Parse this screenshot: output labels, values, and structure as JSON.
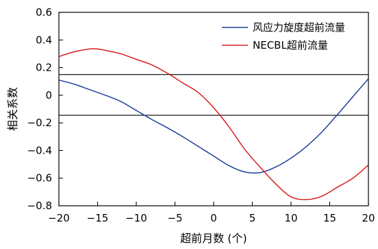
{
  "chart_data": {
    "type": "line",
    "title": "",
    "xlabel": "超前月数 (个)",
    "ylabel": "相关系数",
    "xlim": [
      -20,
      20
    ],
    "ylim": [
      -0.8,
      0.6
    ],
    "xticks": [
      -20,
      -15,
      -10,
      -5,
      0,
      5,
      10,
      15,
      20
    ],
    "xtick_labels": [
      "−20",
      "−15",
      "−10",
      "−5",
      "0",
      "5",
      "10",
      "15",
      "20"
    ],
    "yticks": [
      0.6,
      0.4,
      0.2,
      0,
      -0.2,
      -0.4,
      -0.6,
      -0.8
    ],
    "ytick_labels": [
      "0.6",
      "0.4",
      "0.2",
      "0",
      "−0.2",
      "−0.4",
      "−0.6",
      "−0.8"
    ],
    "grid": false,
    "legend_position": "top-right",
    "significance_lines": [
      0.15,
      -0.145
    ],
    "series": [
      {
        "name": "风应力旋度超前流量",
        "color": "#1f3f9a",
        "x": [
          -20,
          -18,
          -16,
          -14,
          -12,
          -10,
          -8,
          -6,
          -4,
          -2,
          0,
          2,
          4,
          6,
          8,
          10,
          12,
          14,
          16,
          18,
          20
        ],
        "y": [
          0.11,
          0.08,
          0.04,
          0.0,
          -0.045,
          -0.11,
          -0.175,
          -0.235,
          -0.3,
          -0.37,
          -0.44,
          -0.51,
          -0.555,
          -0.56,
          -0.52,
          -0.455,
          -0.37,
          -0.265,
          -0.14,
          -0.01,
          0.12
        ]
      },
      {
        "name": "NECBL超前流量",
        "color": "#d81e1e",
        "x": [
          -20,
          -18,
          -16,
          -15,
          -14,
          -12,
          -10,
          -8,
          -6,
          -4,
          -2,
          0,
          2,
          4,
          6,
          8,
          10,
          12,
          14,
          16,
          18,
          20
        ],
        "y": [
          0.28,
          0.315,
          0.335,
          0.335,
          0.325,
          0.3,
          0.26,
          0.22,
          0.16,
          0.09,
          0.02,
          -0.09,
          -0.23,
          -0.39,
          -0.52,
          -0.64,
          -0.735,
          -0.755,
          -0.73,
          -0.665,
          -0.6,
          -0.505
        ]
      }
    ]
  }
}
